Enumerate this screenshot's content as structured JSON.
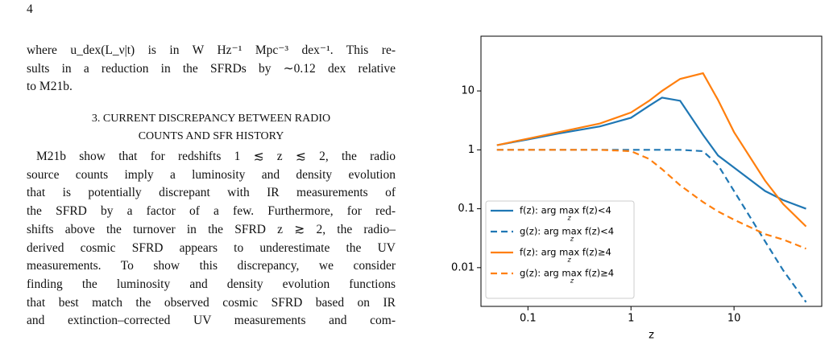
{
  "page_number": "4",
  "paragraph_1": [
    "where u_dex(L_ν|t) is in W Hz⁻¹ Mpc⁻³ dex⁻¹. This re-",
    "sults in a reduction in the SFRDs by ∼0.12 dex relative",
    "to M21b."
  ],
  "section_heading": [
    "3. CURRENT DISCREPANCY BETWEEN RADIO",
    "COUNTS AND SFR HISTORY"
  ],
  "paragraph_2": [
    "M21b show that for redshifts 1 ≲ z ≲ 2, the radio",
    "source counts imply a luminosity and density evolution",
    "that is potentially discrepant with IR measurements of",
    "the SFRD by a factor of a few. Furthermore, for red-",
    "shifts above the turnover in the SFRD z ≳ 2, the radio–",
    "derived cosmic SFRD appears to underestimate the UV",
    "measurements. To show this discrepancy, we consider",
    "finding the luminosity and density evolution functions",
    "that best match the observed cosmic SFRD based on IR",
    "and extinction–corrected UV measurements and com-"
  ],
  "chart_data": {
    "type": "line",
    "xlabel": "z",
    "xscale": "log",
    "yscale": "log",
    "xlim": [
      0.035,
      71
    ],
    "ylim": [
      0.0022,
      85
    ],
    "xticks": [
      0.1,
      1,
      10
    ],
    "yticks": [
      0.01,
      0.1,
      1,
      10
    ],
    "legend": "lower left",
    "x": [
      0.05,
      0.1,
      0.2,
      0.5,
      1,
      1.5,
      2,
      3,
      5,
      7,
      10,
      20,
      30,
      50
    ],
    "series": [
      {
        "name": "f(z): arg max f(z)<4",
        "color": "#1f77b4",
        "linestyle": "solid",
        "values": [
          1.2,
          1.5,
          1.9,
          2.5,
          3.5,
          5.6,
          7.7,
          6.8,
          1.8,
          0.8,
          0.5,
          0.2,
          0.14,
          0.1
        ]
      },
      {
        "name": "g(z): arg max f(z)<4",
        "color": "#1f77b4",
        "linestyle": "dashed",
        "values": [
          1,
          1,
          1,
          1,
          1,
          1,
          1,
          1,
          0.95,
          0.55,
          0.2,
          0.028,
          0.009,
          0.0026
        ]
      },
      {
        "name": "f(z): arg max f(z)≥4",
        "color": "#ff7f0e",
        "linestyle": "solid",
        "values": [
          1.2,
          1.55,
          2.0,
          2.8,
          4.3,
          6.8,
          10,
          16,
          20,
          7,
          2,
          0.3,
          0.12,
          0.05
        ]
      },
      {
        "name": "g(z): arg max f(z)≥4",
        "color": "#ff7f0e",
        "linestyle": "dashed",
        "values": [
          1,
          1,
          1,
          1,
          0.95,
          0.7,
          0.47,
          0.25,
          0.13,
          0.09,
          0.065,
          0.037,
          0.03,
          0.021
        ]
      }
    ]
  }
}
